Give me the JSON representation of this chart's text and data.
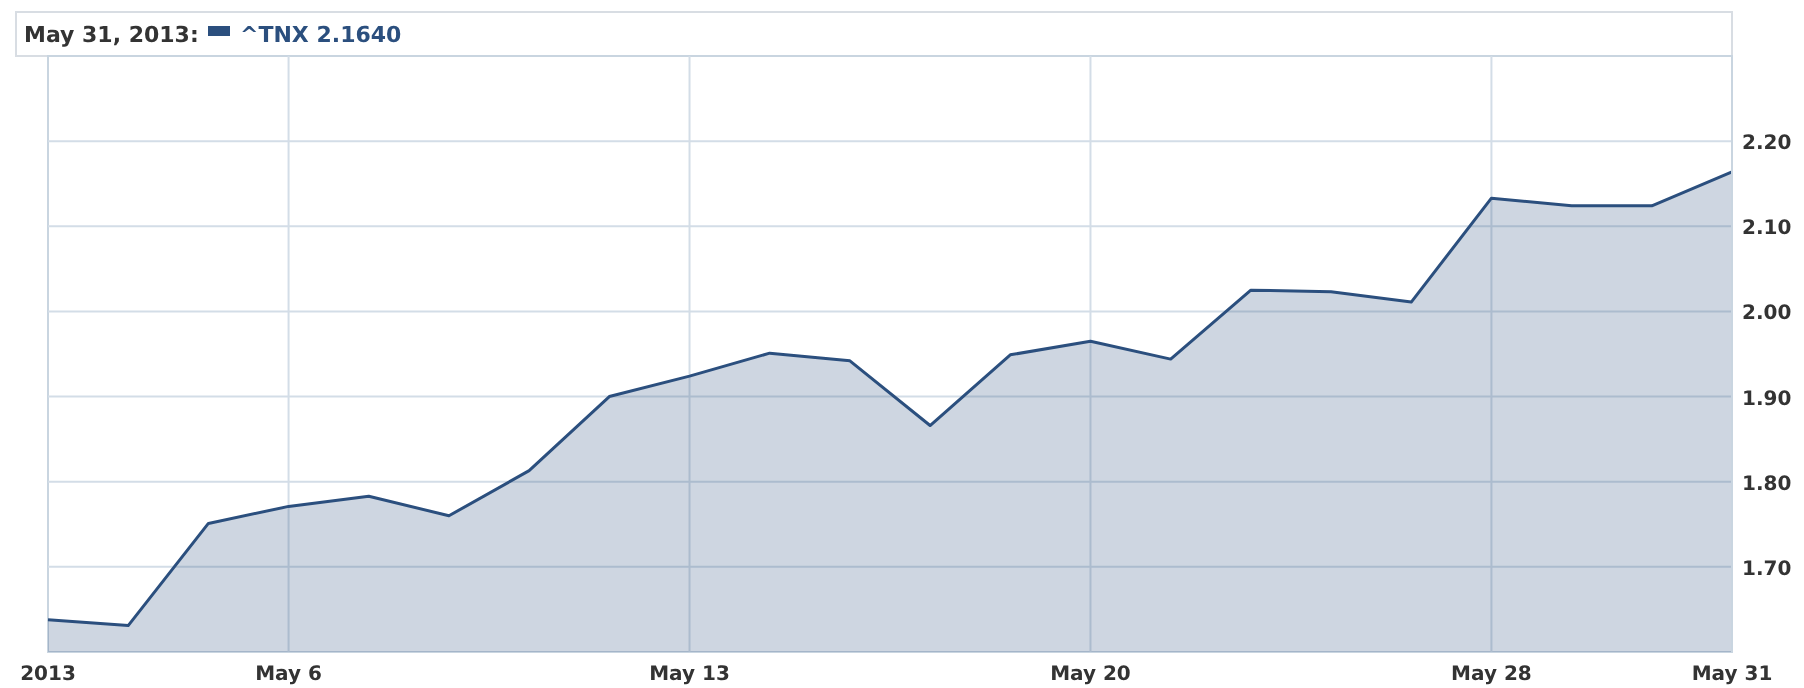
{
  "chart_data": {
    "type": "area",
    "title": "May 31, 2013:",
    "categories": [
      "2013",
      null,
      null,
      "May 6",
      null,
      null,
      null,
      null,
      "May 13",
      null,
      null,
      null,
      null,
      "May 20",
      null,
      null,
      null,
      null,
      "May 28",
      null,
      null,
      "May 31"
    ],
    "series": [
      {
        "name": "^TNX 2.1640",
        "color": "#2b4f7e",
        "values": [
          1.638,
          1.631,
          1.751,
          1.771,
          1.783,
          1.76,
          1.813,
          1.9,
          1.924,
          1.951,
          1.942,
          1.866,
          1.949,
          1.965,
          1.944,
          2.025,
          2.023,
          2.011,
          2.133,
          2.124,
          2.124,
          2.164
        ]
      }
    ],
    "ylim": [
      1.6,
      2.3
    ],
    "yticks": [
      {
        "value": 1.7,
        "label": "1.70"
      },
      {
        "value": 1.8,
        "label": "1.80"
      },
      {
        "value": 1.9,
        "label": "1.90"
      },
      {
        "value": 2.0,
        "label": "2.00"
      },
      {
        "value": 2.1,
        "label": "2.10"
      },
      {
        "value": 2.2,
        "label": "2.20"
      }
    ],
    "grid": true,
    "legend": "top left"
  }
}
